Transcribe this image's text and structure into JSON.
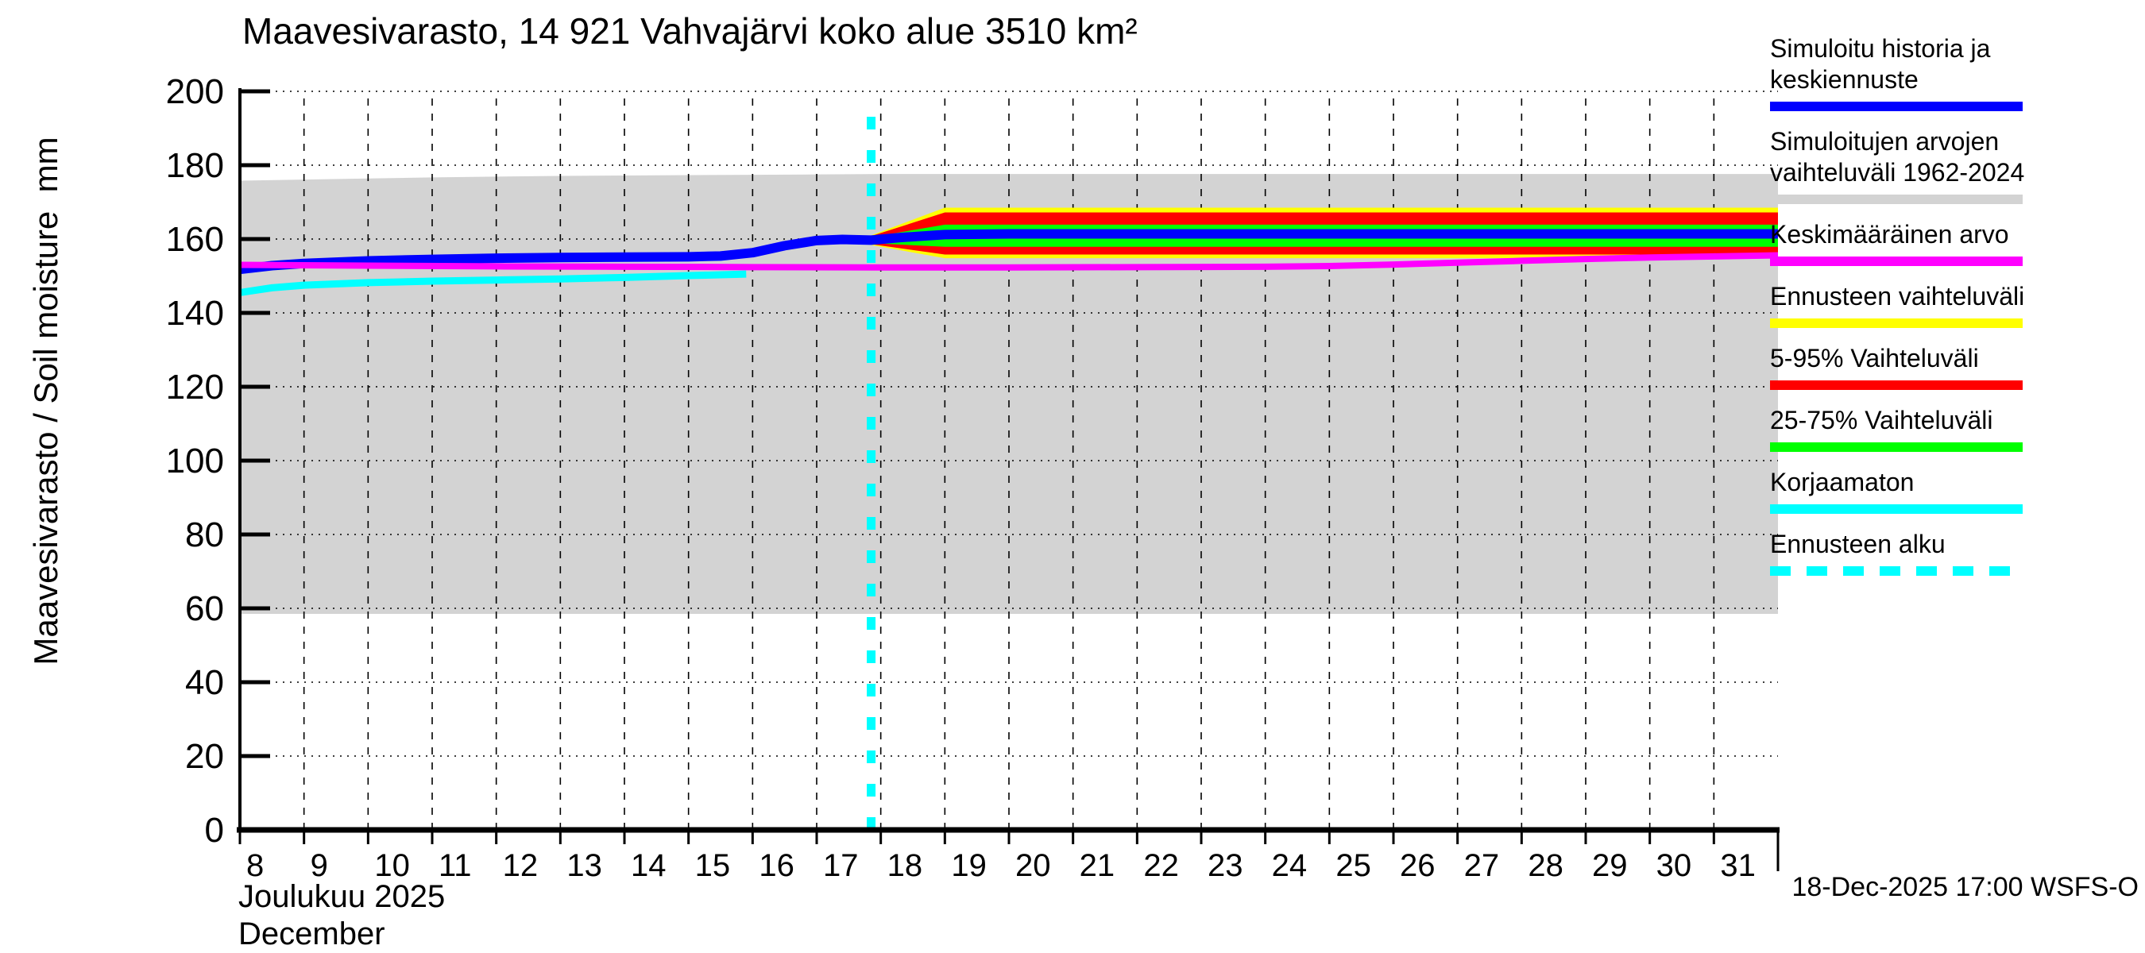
{
  "title": "Maavesivarasto, 14 921 Vahvajärvi koko alue 3510 km²",
  "y_axis_label": "Maavesivarasto / Soil moisture  mm",
  "x_axis": {
    "month_label_fi": "Joulukuu 2025",
    "month_label_en": "December"
  },
  "footer": {
    "timestamp": "18-Dec-2025 17:00 WSFS-O"
  },
  "legend": [
    {
      "label": "Simuloitu historia ja\nkeskiennuste",
      "color": "#0000ff",
      "style": "solid"
    },
    {
      "label": "Simuloitujen arvojen\nvaihteluväli 1962-2024",
      "color": "#d3d3d3",
      "style": "solid"
    },
    {
      "label": "Keskimääräinen arvo",
      "color": "#ff00ff",
      "style": "solid"
    },
    {
      "label": "Ennusteen vaihteluväli",
      "color": "#ffff00",
      "style": "solid"
    },
    {
      "label": "5-95% Vaihteluväli",
      "color": "#ff0000",
      "style": "solid"
    },
    {
      "label": "25-75% Vaihteluväli",
      "color": "#00ff00",
      "style": "solid"
    },
    {
      "label": "Korjaamaton",
      "color": "#00ffff",
      "style": "solid"
    },
    {
      "label": "Ennusteen alku",
      "color": "#00ffff",
      "style": "dashed"
    }
  ],
  "chart_data": {
    "type": "line",
    "title": "Maavesivarasto, 14 921 Vahvajärvi koko alue 3510 km²",
    "xlabel": "Joulukuu 2025 / December",
    "ylabel": "Maavesivarasto / Soil moisture mm",
    "xlim": [
      8,
      32
    ],
    "ylim": [
      0,
      200
    ],
    "x_ticks": [
      8,
      9,
      10,
      11,
      12,
      13,
      14,
      15,
      16,
      17,
      18,
      19,
      20,
      21,
      22,
      23,
      24,
      25,
      26,
      27,
      28,
      29,
      30,
      31
    ],
    "y_ticks": [
      0,
      20,
      40,
      60,
      80,
      100,
      120,
      140,
      160,
      180,
      200
    ],
    "grid": true,
    "forecast_start_x": 17.85,
    "marker": {
      "name": "ennusteen-alku",
      "color": "#00ffff",
      "width": 11,
      "dash": "16 26",
      "y_top": 198
    },
    "bands": [
      {
        "name": "simuloitujen-arvojen-vaihteluvali-1962-2024",
        "color": "#d3d3d3",
        "layer": "back",
        "x": [
          8,
          9,
          10,
          11,
          12,
          13,
          14,
          15,
          16,
          17,
          18,
          32
        ],
        "upper": [
          175.8,
          176.1,
          176.4,
          176.7,
          176.9,
          177.1,
          177.2,
          177.3,
          177.4,
          177.5,
          177.6,
          177.6
        ],
        "lower": [
          58.5,
          58.5,
          58.5,
          58.5,
          58.5,
          58.5,
          58.5,
          58.5,
          58.5,
          58.5,
          58.5,
          58.5
        ]
      },
      {
        "name": "ennusteen-vaihteluvali",
        "color": "#ffff00",
        "layer": "front",
        "x": [
          17.85,
          19,
          32
        ],
        "upper": [
          161.0,
          168.5,
          168.5
        ],
        "lower": [
          158.4,
          154.8,
          154.8
        ]
      },
      {
        "name": "5-95-vaihteluvali",
        "color": "#ff0000",
        "layer": "front",
        "x": [
          17.85,
          19,
          32
        ],
        "upper": [
          160.8,
          167.2,
          167.2
        ],
        "lower": [
          158.6,
          155.8,
          155.8
        ]
      },
      {
        "name": "25-75-vaihteluvali",
        "color": "#00ff00",
        "layer": "front",
        "x": [
          17.85,
          19,
          32
        ],
        "upper": [
          160.5,
          163.9,
          163.9
        ],
        "lower": [
          158.9,
          157.9,
          157.9
        ]
      }
    ],
    "lines": [
      {
        "name": "korjaamaton",
        "color": "#00ffff",
        "width": 9,
        "x": [
          8,
          8.5,
          9,
          10,
          11,
          12,
          13,
          14,
          15,
          15.9
        ],
        "y": [
          145.5,
          146.8,
          147.5,
          148.2,
          148.6,
          148.9,
          149.2,
          149.6,
          150.1,
          150.5
        ]
      },
      {
        "name": "simuloitu-historia-ja-keskiennuste",
        "color": "#0000ff",
        "width": 12,
        "x": [
          8,
          8.5,
          9,
          10,
          11,
          12,
          13,
          14,
          15,
          15.5,
          16,
          16.5,
          17,
          17.4,
          17.85,
          18.3,
          19,
          20,
          22,
          24,
          26,
          28,
          30,
          32
        ],
        "y": [
          151.8,
          152.8,
          153.4,
          154.1,
          154.5,
          154.8,
          155.0,
          155.1,
          155.2,
          155.4,
          156.3,
          158.2,
          159.6,
          159.9,
          159.7,
          160.4,
          161.2,
          161.4,
          161.4,
          161.4,
          161.4,
          161.4,
          161.4,
          161.4
        ]
      },
      {
        "name": "keskimaarainen-arvo",
        "color": "#ff00ff",
        "width": 8,
        "x": [
          8,
          10,
          12,
          14,
          16,
          18,
          20,
          22,
          24,
          25,
          26,
          27,
          28,
          29,
          30,
          31,
          32
        ],
        "y": [
          153.0,
          152.8,
          152.6,
          152.5,
          152.4,
          152.3,
          152.3,
          152.4,
          152.5,
          152.7,
          153.1,
          153.6,
          154.1,
          154.6,
          155.0,
          155.3,
          155.6
        ]
      }
    ]
  }
}
